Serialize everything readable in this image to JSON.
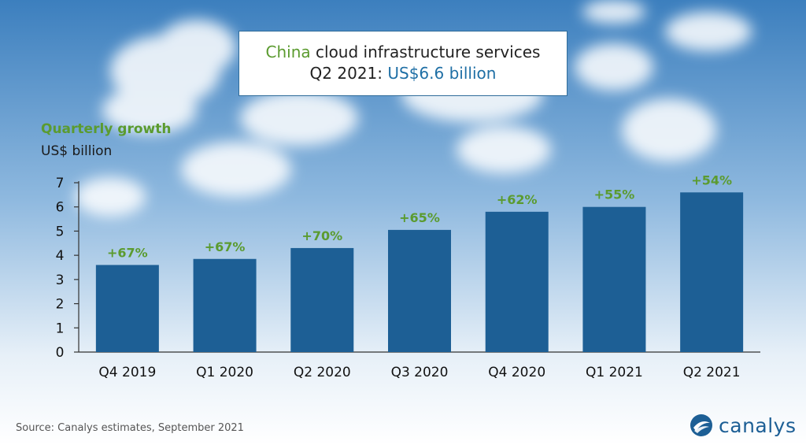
{
  "title": {
    "line1_prefix": "China",
    "line1_rest": " cloud infrastructure services",
    "line2_prefix": "Q2 2021: ",
    "line2_value": "US$6.6 billion"
  },
  "growth_label": "Quarterly growth",
  "unit_label": "US$ billion",
  "source": "Source: Canalys estimates, September 2021",
  "logo": {
    "text": "canalys",
    "icon": "canalys-logo-icon"
  },
  "colors": {
    "bar": "#1d5f95",
    "growth": "#5b9b2f",
    "accent": "#1f6fa5"
  },
  "chart_data": {
    "type": "bar",
    "categories": [
      "Q4 2019",
      "Q1 2020",
      "Q2 2020",
      "Q3 2020",
      "Q4 2020",
      "Q1 2021",
      "Q2 2021"
    ],
    "values": [
      3.6,
      3.85,
      4.3,
      5.05,
      5.8,
      6.0,
      6.6
    ],
    "data_labels": [
      "+67%",
      "+67%",
      "+70%",
      "+65%",
      "+62%",
      "+55%",
      "+54%"
    ],
    "yticks": [
      0,
      1,
      2,
      3,
      4,
      5,
      6,
      7
    ],
    "ylim": [
      0,
      7
    ],
    "grid": false,
    "legend": "none"
  }
}
